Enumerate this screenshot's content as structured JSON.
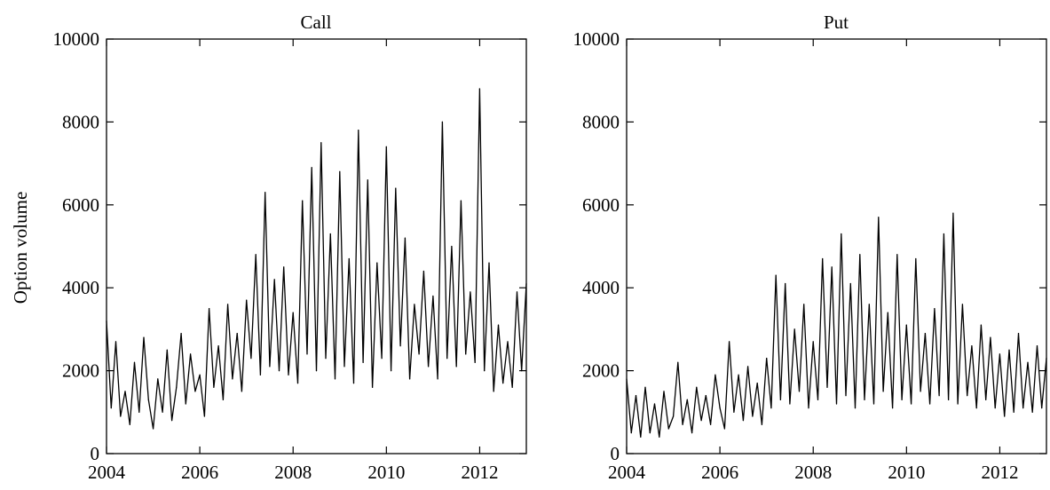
{
  "colors": {
    "line": "#000000",
    "axes": "#000000",
    "background": "#ffffff"
  },
  "chart_data": [
    {
      "type": "line",
      "title": "Call",
      "xlabel": "",
      "ylabel": "Option volume",
      "xlim": [
        2004,
        2013
      ],
      "ylim": [
        0,
        10000
      ],
      "xticks": [
        2004,
        2006,
        2008,
        2010,
        2012
      ],
      "xtick_labels": [
        "2004",
        "2006",
        "2008",
        "2010",
        "2012"
      ],
      "yticks": [
        0,
        2000,
        4000,
        6000,
        8000,
        10000
      ],
      "ytick_labels": [
        "0",
        "2000",
        "4000",
        "6000",
        "8000",
        "10000"
      ],
      "grid": false,
      "series": [
        {
          "x": [
            2004.0,
            2004.1,
            2004.2,
            2004.3,
            2004.4,
            2004.5,
            2004.6,
            2004.7,
            2004.8,
            2004.9,
            2005.0,
            2005.1,
            2005.2,
            2005.3,
            2005.4,
            2005.5,
            2005.6,
            2005.7,
            2005.8,
            2005.9,
            2006.0,
            2006.1,
            2006.2,
            2006.3,
            2006.4,
            2006.5,
            2006.6,
            2006.7,
            2006.8,
            2006.9,
            2007.0,
            2007.1,
            2007.2,
            2007.3,
            2007.4,
            2007.5,
            2007.6,
            2007.7,
            2007.8,
            2007.9,
            2008.0,
            2008.1,
            2008.2,
            2008.3,
            2008.4,
            2008.5,
            2008.6,
            2008.7,
            2008.8,
            2008.9,
            2009.0,
            2009.1,
            2009.2,
            2009.3,
            2009.4,
            2009.5,
            2009.6,
            2009.7,
            2009.8,
            2009.9,
            2010.0,
            2010.1,
            2010.2,
            2010.3,
            2010.4,
            2010.5,
            2010.6,
            2010.7,
            2010.8,
            2010.9,
            2011.0,
            2011.1,
            2011.2,
            2011.3,
            2011.4,
            2011.5,
            2011.6,
            2011.7,
            2011.8,
            2011.9,
            2012.0,
            2012.1,
            2012.2,
            2012.3,
            2012.4,
            2012.5,
            2012.6,
            2012.7,
            2012.8,
            2012.9,
            2013.0
          ],
          "values": [
            3200,
            1100,
            2700,
            900,
            1500,
            700,
            2200,
            1000,
            2800,
            1300,
            600,
            1800,
            1000,
            2500,
            800,
            1600,
            2900,
            1200,
            2400,
            1500,
            1900,
            900,
            3500,
            1600,
            2600,
            1300,
            3600,
            1800,
            2900,
            1500,
            3700,
            2300,
            4800,
            1900,
            6300,
            2100,
            4200,
            2000,
            4500,
            1900,
            3400,
            1700,
            6100,
            2400,
            6900,
            2000,
            7500,
            2300,
            5300,
            1800,
            6800,
            2100,
            4700,
            1700,
            7800,
            2200,
            6600,
            1600,
            4600,
            2300,
            7400,
            2000,
            6400,
            2600,
            5200,
            1800,
            3600,
            2400,
            4400,
            2100,
            3800,
            1800,
            8000,
            2300,
            5000,
            2100,
            6100,
            2400,
            3900,
            2200,
            8800,
            2000,
            4600,
            1500,
            3100,
            1700,
            2700,
            1600,
            3900,
            2000,
            4100
          ]
        }
      ]
    },
    {
      "type": "line",
      "title": "Put",
      "xlabel": "",
      "ylabel": "",
      "xlim": [
        2004,
        2013
      ],
      "ylim": [
        0,
        10000
      ],
      "xticks": [
        2004,
        2006,
        2008,
        2010,
        2012
      ],
      "xtick_labels": [
        "2004",
        "2006",
        "2008",
        "2010",
        "2012"
      ],
      "yticks": [
        0,
        2000,
        4000,
        6000,
        8000,
        10000
      ],
      "ytick_labels": [
        "0",
        "2000",
        "4000",
        "6000",
        "8000",
        "10000"
      ],
      "grid": false,
      "series": [
        {
          "x": [
            2004.0,
            2004.1,
            2004.2,
            2004.3,
            2004.4,
            2004.5,
            2004.6,
            2004.7,
            2004.8,
            2004.9,
            2005.0,
            2005.1,
            2005.2,
            2005.3,
            2005.4,
            2005.5,
            2005.6,
            2005.7,
            2005.8,
            2005.9,
            2006.0,
            2006.1,
            2006.2,
            2006.3,
            2006.4,
            2006.5,
            2006.6,
            2006.7,
            2006.8,
            2006.9,
            2007.0,
            2007.1,
            2007.2,
            2007.3,
            2007.4,
            2007.5,
            2007.6,
            2007.7,
            2007.8,
            2007.9,
            2008.0,
            2008.1,
            2008.2,
            2008.3,
            2008.4,
            2008.5,
            2008.6,
            2008.7,
            2008.8,
            2008.9,
            2009.0,
            2009.1,
            2009.2,
            2009.3,
            2009.4,
            2009.5,
            2009.6,
            2009.7,
            2009.8,
            2009.9,
            2010.0,
            2010.1,
            2010.2,
            2010.3,
            2010.4,
            2010.5,
            2010.6,
            2010.7,
            2010.8,
            2010.9,
            2011.0,
            2011.1,
            2011.2,
            2011.3,
            2011.4,
            2011.5,
            2011.6,
            2011.7,
            2011.8,
            2011.9,
            2012.0,
            2012.1,
            2012.2,
            2012.3,
            2012.4,
            2012.5,
            2012.6,
            2012.7,
            2012.8,
            2012.9,
            2013.0
          ],
          "values": [
            1800,
            500,
            1400,
            400,
            1600,
            500,
            1200,
            400,
            1500,
            600,
            900,
            2200,
            700,
            1300,
            500,
            1600,
            800,
            1400,
            700,
            1900,
            1100,
            600,
            2700,
            1000,
            1900,
            800,
            2100,
            900,
            1700,
            700,
            2300,
            1100,
            4300,
            1300,
            4100,
            1200,
            3000,
            1500,
            3600,
            1100,
            2700,
            1300,
            4700,
            1600,
            4500,
            1200,
            5300,
            1400,
            4100,
            1100,
            4800,
            1300,
            3600,
            1200,
            5700,
            1500,
            3400,
            1100,
            4800,
            1300,
            3100,
            1200,
            4700,
            1500,
            2900,
            1200,
            3500,
            1400,
            5300,
            1300,
            5800,
            1200,
            3600,
            1400,
            2600,
            1100,
            3100,
            1300,
            2800,
            1100,
            2400,
            900,
            2500,
            1000,
            2900,
            1100,
            2200,
            1000,
            2600,
            1100,
            2300
          ]
        }
      ]
    }
  ]
}
